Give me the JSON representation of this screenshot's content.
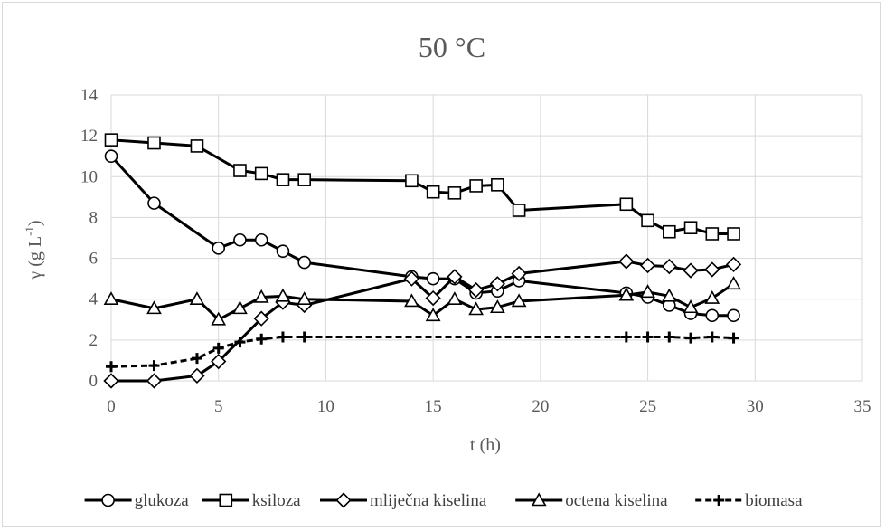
{
  "chart_data": {
    "type": "line",
    "title": "50 °C",
    "xlabel": "t (h)",
    "ylabel": "γ (g L-1)",
    "ylabel_main": "γ (g L",
    "ylabel_sup": "-1",
    "ylabel_close": ")",
    "xlim": [
      0,
      35
    ],
    "ylim": [
      0,
      14
    ],
    "xticks": [
      0,
      5,
      10,
      15,
      20,
      25,
      30,
      35
    ],
    "yticks": [
      0,
      2,
      4,
      6,
      8,
      10,
      12,
      14
    ],
    "grid": true,
    "legend_position": "bottom",
    "series": [
      {
        "name": "glukoza",
        "marker": "circle",
        "dashed": false,
        "x": [
          0,
          2,
          5,
          6,
          7,
          8,
          9,
          14,
          15,
          16,
          17,
          18,
          19,
          24,
          25,
          26,
          27,
          28,
          29
        ],
        "y": [
          11.0,
          8.7,
          6.5,
          6.9,
          6.9,
          6.35,
          5.8,
          5.1,
          5.0,
          5.0,
          4.3,
          4.4,
          4.9,
          4.3,
          4.1,
          3.7,
          3.3,
          3.2,
          3.2
        ]
      },
      {
        "name": "ksiloza",
        "marker": "square",
        "dashed": false,
        "x": [
          0,
          2,
          4,
          6,
          7,
          8,
          9,
          14,
          15,
          16,
          17,
          18,
          19,
          24,
          25,
          26,
          27,
          28,
          29
        ],
        "y": [
          11.8,
          11.65,
          11.5,
          10.3,
          10.15,
          9.85,
          9.85,
          9.8,
          9.25,
          9.2,
          9.55,
          9.6,
          8.35,
          8.65,
          7.85,
          7.3,
          7.5,
          7.2,
          7.2
        ]
      },
      {
        "name": "mliječna kiselina",
        "marker": "diamond",
        "dashed": false,
        "x": [
          0,
          2,
          4,
          5,
          7,
          8,
          9,
          14,
          15,
          16,
          17,
          18,
          19,
          24,
          25,
          26,
          27,
          28,
          29
        ],
        "y": [
          0.0,
          0.0,
          0.25,
          0.95,
          3.05,
          3.85,
          3.7,
          5.0,
          4.05,
          5.1,
          4.45,
          4.75,
          5.25,
          5.85,
          5.65,
          5.6,
          5.4,
          5.45,
          5.7
        ]
      },
      {
        "name": "octena kiselina",
        "marker": "triangle",
        "dashed": false,
        "x": [
          0,
          2,
          4,
          5,
          6,
          7,
          8,
          9,
          14,
          15,
          16,
          17,
          18,
          19,
          24,
          25,
          26,
          27,
          28,
          29
        ],
        "y": [
          4.0,
          3.55,
          4.0,
          3.0,
          3.55,
          4.1,
          4.15,
          4.0,
          3.9,
          3.2,
          4.0,
          3.5,
          3.6,
          3.9,
          4.2,
          4.35,
          4.15,
          3.6,
          4.05,
          4.75
        ]
      },
      {
        "name": "biomasa",
        "marker": "plus",
        "dashed": true,
        "x": [
          0,
          2,
          4,
          5,
          6,
          7,
          8,
          9,
          24,
          25,
          26,
          27,
          28,
          29
        ],
        "y": [
          0.7,
          0.75,
          1.1,
          1.6,
          1.9,
          2.05,
          2.15,
          2.15,
          2.15,
          2.15,
          2.15,
          2.1,
          2.15,
          2.1
        ]
      }
    ]
  }
}
